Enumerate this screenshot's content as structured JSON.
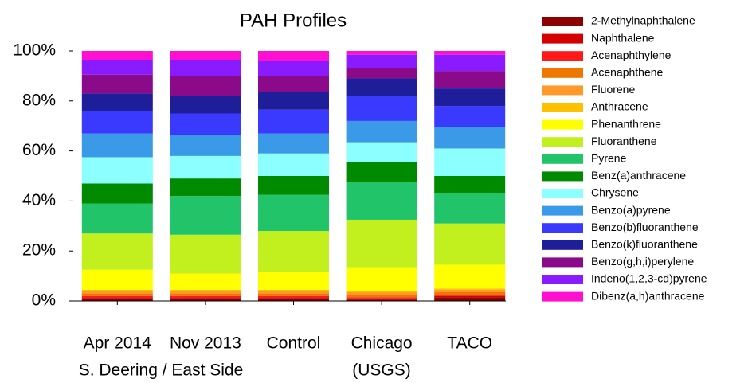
{
  "chart_data": {
    "type": "stacked-bar",
    "title": "PAH Profiles",
    "categories": [
      "Apr 2014",
      "Nov 2013",
      "Control",
      "Chicago",
      "TACO"
    ],
    "annotations": [
      {
        "text": "S. Deering / East Side"
      },
      {
        "text": "(USGS)"
      }
    ],
    "ylim": [
      0,
      100
    ],
    "yticks": [
      {
        "value": 0,
        "label": "0%"
      },
      {
        "value": 20,
        "label": "20%"
      },
      {
        "value": 40,
        "label": "40%"
      },
      {
        "value": 60,
        "label": "60%"
      },
      {
        "value": 80,
        "label": "80%"
      },
      {
        "value": 100,
        "label": "100%"
      }
    ],
    "legend": "right",
    "series": [
      {
        "name": "2-Methylnaphthalene",
        "color": "#8b0000",
        "values": [
          1,
          1,
          1,
          0.5,
          1.5
        ]
      },
      {
        "name": "Naphthalene",
        "color": "#d40000",
        "values": [
          0.5,
          0.5,
          0.5,
          0.5,
          0.5
        ]
      },
      {
        "name": "Acenaphthylene",
        "color": "#ff1a1a",
        "values": [
          0.5,
          0.5,
          0.5,
          0.5,
          0.5
        ]
      },
      {
        "name": "Acenaphthene",
        "color": "#ee7700",
        "values": [
          1,
          1,
          1,
          1,
          1
        ]
      },
      {
        "name": "Fluorene",
        "color": "#ff9a2a",
        "values": [
          1,
          1,
          1,
          1,
          1
        ]
      },
      {
        "name": "Anthracene",
        "color": "#ffc000",
        "values": [
          0.5,
          0.5,
          0.5,
          0.5,
          0.5
        ]
      },
      {
        "name": "Phenanthrene",
        "color": "#ffff00",
        "values": [
          8,
          6.5,
          7,
          9.5,
          9.5
        ]
      },
      {
        "name": "Fluoranthene",
        "color": "#c2f01e",
        "values": [
          14.5,
          15.5,
          16.5,
          19,
          16.5
        ]
      },
      {
        "name": "Pyrene",
        "color": "#22c46a",
        "values": [
          12,
          15.5,
          14.5,
          15,
          12
        ]
      },
      {
        "name": "Benz(a)anthracene",
        "color": "#008a00",
        "values": [
          8,
          7,
          7.5,
          8,
          7
        ]
      },
      {
        "name": "Chrysene",
        "color": "#8cffff",
        "values": [
          10.5,
          9,
          9,
          8,
          11
        ]
      },
      {
        "name": "Benzo(a)pyrene",
        "color": "#3a9ae8",
        "values": [
          9.5,
          8.5,
          8,
          8.5,
          8.5
        ]
      },
      {
        "name": "Benzo(b)fluoranthene",
        "color": "#3a3aff",
        "values": [
          9,
          8.5,
          9.5,
          10,
          8.5
        ]
      },
      {
        "name": "Benzo(k)fluoranthene",
        "color": "#1e1e9a",
        "values": [
          7,
          7,
          7,
          7,
          7
        ]
      },
      {
        "name": "Benzo(g,h,i)perylene",
        "color": "#8a0a8a",
        "values": [
          7.5,
          8,
          6.5,
          4,
          7
        ]
      },
      {
        "name": "Indeno(1,2,3-cd)pyrene",
        "color": "#8a1aff",
        "values": [
          6,
          6.5,
          6,
          5.5,
          6.5
        ]
      },
      {
        "name": "Dibenz(a,h)anthracene",
        "color": "#ff10d0",
        "values": [
          3.5,
          3.5,
          4,
          1.5,
          1.5
        ]
      }
    ]
  }
}
